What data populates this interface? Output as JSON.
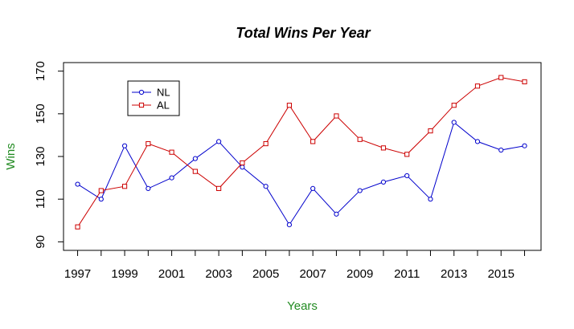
{
  "chart_data": {
    "type": "line",
    "title": "Total Wins Per Year",
    "xlabel": "Years",
    "ylabel": "Wins",
    "x": [
      1997,
      1998,
      1999,
      2000,
      2001,
      2002,
      2003,
      2004,
      2005,
      2006,
      2007,
      2008,
      2009,
      2010,
      2011,
      2012,
      2013,
      2014,
      2015,
      2016
    ],
    "xticks": [
      "1997",
      "1999",
      "2001",
      "2003",
      "2005",
      "2007",
      "2009",
      "2011",
      "2013",
      "2015"
    ],
    "yticks": [
      "90",
      "110",
      "130",
      "150",
      "170"
    ],
    "xlim": [
      1996.4,
      2016.7
    ],
    "ylim": [
      86,
      174
    ],
    "series": [
      {
        "name": "NL",
        "color": "#0000cc",
        "marker": "circle",
        "values": [
          117,
          110,
          135,
          115,
          120,
          129,
          137,
          125,
          116,
          98,
          115,
          103,
          114,
          118,
          121,
          110,
          146,
          137,
          133,
          135
        ]
      },
      {
        "name": "AL",
        "color": "#cc0000",
        "marker": "square",
        "values": [
          97,
          114,
          116,
          136,
          132,
          123,
          115,
          127,
          136,
          154,
          137,
          149,
          138,
          134,
          131,
          142,
          154,
          163,
          167,
          165
        ]
      }
    ],
    "legend_position": "top-left",
    "grid": false,
    "colors": {
      "title": "#000000",
      "axis_label": "#228b22",
      "axis": "#000000"
    }
  }
}
